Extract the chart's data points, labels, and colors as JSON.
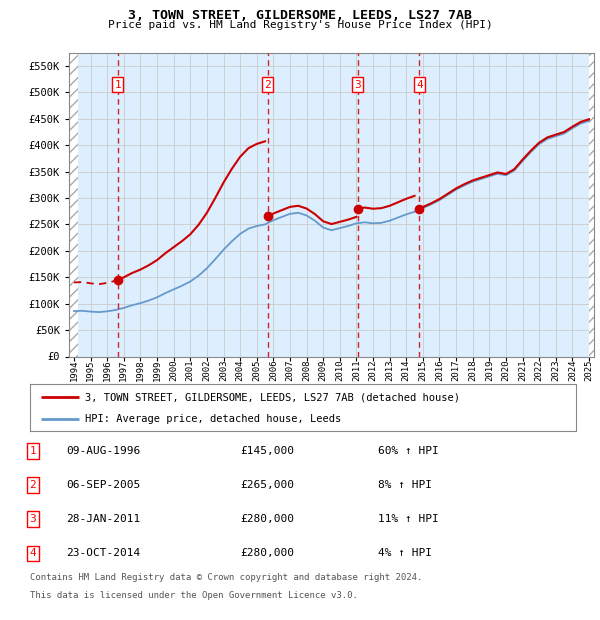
{
  "title": "3, TOWN STREET, GILDERSOME, LEEDS, LS27 7AB",
  "subtitle": "Price paid vs. HM Land Registry's House Price Index (HPI)",
  "legend_line1": "3, TOWN STREET, GILDERSOME, LEEDS, LS27 7AB (detached house)",
  "legend_line2": "HPI: Average price, detached house, Leeds",
  "footnote1": "Contains HM Land Registry data © Crown copyright and database right 2024.",
  "footnote2": "This data is licensed under the Open Government Licence v3.0.",
  "sale_prices": [
    145000,
    265000,
    280000,
    280000
  ],
  "sale_labels": [
    "09-AUG-1996",
    "06-SEP-2005",
    "28-JAN-2011",
    "23-OCT-2014"
  ],
  "sale_price_labels": [
    "£145,000",
    "£265,000",
    "£280,000",
    "£280,000"
  ],
  "sale_hpi_pct": [
    "60% ↑ HPI",
    "8% ↑ HPI",
    "11% ↑ HPI",
    "4% ↑ HPI"
  ],
  "sale_numbers": [
    "1",
    "2",
    "3",
    "4"
  ],
  "ylim": [
    0,
    575000
  ],
  "yticks": [
    0,
    50000,
    100000,
    150000,
    200000,
    250000,
    300000,
    350000,
    400000,
    450000,
    500000,
    550000
  ],
  "ytick_labels": [
    "£0",
    "£50K",
    "£100K",
    "£150K",
    "£200K",
    "£250K",
    "£300K",
    "£350K",
    "£400K",
    "£450K",
    "£500K",
    "£550K"
  ],
  "hpi_color": "#6699cc",
  "price_color": "#cc0000",
  "bg_plot_color": "#ddeeff",
  "grid_color": "#cccccc",
  "sale_years_decimal": [
    1996.625,
    2005.667,
    2011.075,
    2014.792
  ],
  "hpi_years": [
    1994.0,
    1994.5,
    1995.0,
    1995.5,
    1996.0,
    1996.5,
    1997.0,
    1997.5,
    1998.0,
    1998.5,
    1999.0,
    1999.5,
    2000.0,
    2000.5,
    2001.0,
    2001.5,
    2002.0,
    2002.5,
    2003.0,
    2003.5,
    2004.0,
    2004.5,
    2005.0,
    2005.5,
    2006.0,
    2006.5,
    2007.0,
    2007.5,
    2008.0,
    2008.5,
    2009.0,
    2009.5,
    2010.0,
    2010.5,
    2011.0,
    2011.5,
    2012.0,
    2012.5,
    2013.0,
    2013.5,
    2014.0,
    2014.5,
    2015.0,
    2015.5,
    2016.0,
    2016.5,
    2017.0,
    2017.5,
    2018.0,
    2018.5,
    2019.0,
    2019.5,
    2020.0,
    2020.5,
    2021.0,
    2021.5,
    2022.0,
    2022.5,
    2023.0,
    2023.5,
    2024.0,
    2024.5,
    2025.0
  ],
  "hpi_values": [
    86000,
    86500,
    85000,
    84000,
    85500,
    88000,
    92000,
    97000,
    101000,
    106000,
    112000,
    120000,
    127000,
    134000,
    142000,
    153000,
    167000,
    184000,
    202000,
    218000,
    232000,
    242000,
    247000,
    250000,
    258000,
    264000,
    270000,
    272000,
    267000,
    257000,
    244000,
    239000,
    243000,
    247000,
    252000,
    254000,
    252000,
    253000,
    257000,
    263000,
    269000,
    274000,
    281000,
    288000,
    296000,
    306000,
    316000,
    324000,
    331000,
    336000,
    341000,
    346000,
    343000,
    352000,
    370000,
    387000,
    402000,
    412000,
    417000,
    422000,
    432000,
    441000,
    446000
  ],
  "xlim": [
    1993.7,
    2025.3
  ],
  "xtick_years": [
    1994,
    1995,
    1996,
    1997,
    1998,
    1999,
    2000,
    2001,
    2002,
    2003,
    2004,
    2005,
    2006,
    2007,
    2008,
    2009,
    2010,
    2011,
    2012,
    2013,
    2014,
    2015,
    2016,
    2017,
    2018,
    2019,
    2020,
    2021,
    2022,
    2023,
    2024,
    2025
  ]
}
